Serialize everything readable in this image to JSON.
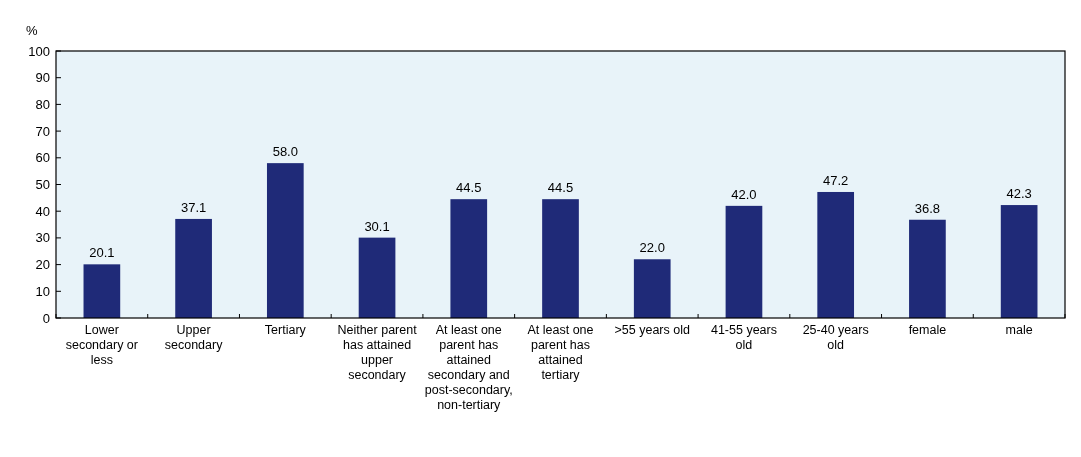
{
  "chart_data": {
    "type": "bar",
    "ylabel": "%",
    "categories": [
      "Lower secondary or less",
      "Upper secondary",
      "Tertiary",
      "Neither parent has attained upper secondary",
      "At least one parent has attained secondary and post-secondary, non-tertiary",
      "At least one parent has attained tertiary",
      ">55 years old",
      "41-55 years old",
      "25-40 years old",
      "female",
      "male"
    ],
    "values": [
      20.1,
      37.1,
      58.0,
      30.1,
      44.5,
      44.5,
      22.0,
      42.0,
      47.2,
      36.8,
      42.3
    ],
    "value_labels": [
      "20.1",
      "37.1",
      "58.0",
      "30.1",
      "44.5",
      "44.5",
      "22.0",
      "42.0",
      "47.2",
      "36.8",
      "42.3"
    ],
    "color": "#1f2a78",
    "ylim": [
      0,
      100
    ],
    "yticks": [
      0,
      10,
      20,
      30,
      40,
      50,
      60,
      70,
      80,
      90,
      100
    ],
    "grid": false
  }
}
